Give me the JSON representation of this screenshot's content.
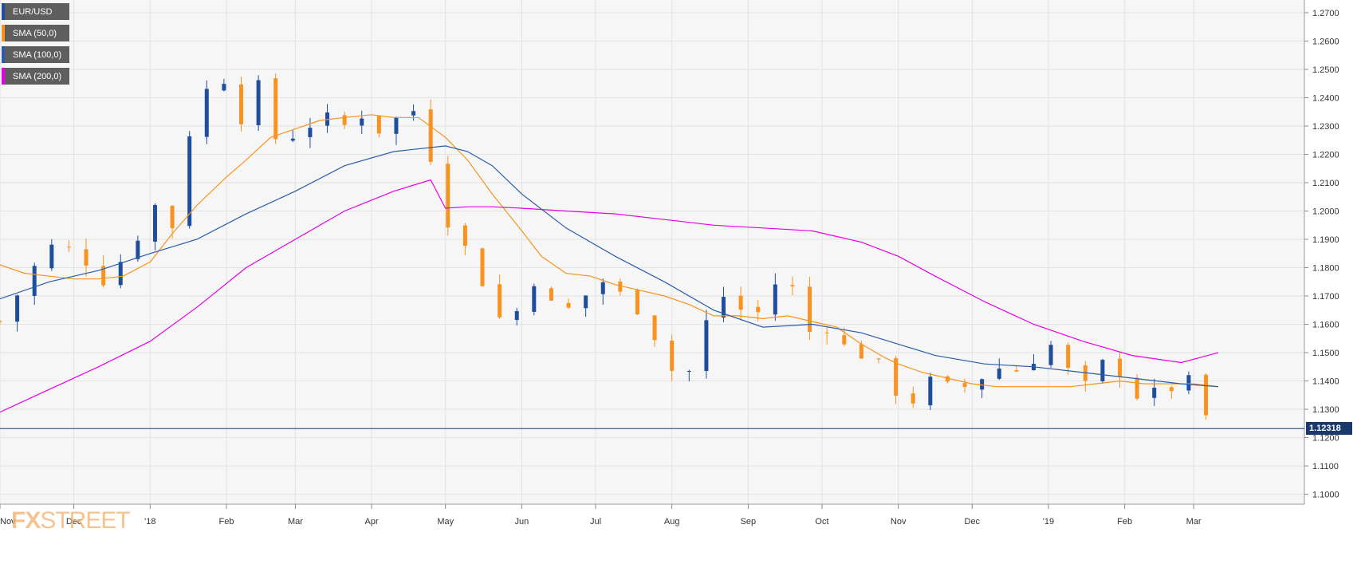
{
  "legend": [
    {
      "label": "EUR/USD",
      "color": "#1f4e9c"
    },
    {
      "label": "SMA (50,0)",
      "color": "#f7931e"
    },
    {
      "label": "SMA (100,0)",
      "color": "#2a5caa"
    },
    {
      "label": "SMA (200,0)",
      "color": "#e600e6"
    }
  ],
  "watermark": {
    "prefix": "FX",
    "suffix": "STREET"
  },
  "price_tag": "1.12318",
  "chart_data": {
    "type": "line",
    "ylim": [
      1.0965,
      1.2745
    ],
    "y_ticks": [
      "1.1000",
      "1.1100",
      "1.1200",
      "1.1300",
      "1.1400",
      "1.1500",
      "1.1600",
      "1.1700",
      "1.1800",
      "1.1900",
      "1.2000",
      "1.2100",
      "1.2200",
      "1.2300",
      "1.2400",
      "1.2500",
      "1.2600",
      "1.2700"
    ],
    "x_tick_labels": [
      "Nov",
      "Dec",
      "'18",
      "Feb",
      "Mar",
      "Apr",
      "May",
      "Jun",
      "Jul",
      "Aug",
      "Sep",
      "Oct",
      "Nov",
      "Dec",
      "'19",
      "Feb",
      "Mar"
    ],
    "x_tick_days": [
      0,
      30,
      61,
      92,
      120,
      151,
      181,
      212,
      242,
      273,
      304,
      334,
      365,
      395,
      426,
      457,
      485
    ],
    "x_range_days": [
      0,
      530
    ],
    "current_price": 1.12318,
    "colors": {
      "up": "#1f4e9c",
      "down": "#f7931e",
      "sma50": "#f7931e",
      "sma100": "#2a5caa",
      "sma200": "#e600e6",
      "price_line": "#1b3a6b"
    },
    "series": [
      {
        "name": "EUR/USD",
        "kind": "candles_close_path",
        "x": [
          0,
          5,
          10,
          15,
          20,
          25,
          30,
          35,
          40,
          45,
          50,
          55,
          61,
          66,
          70,
          75,
          80,
          85,
          92,
          95,
          100,
          105,
          110,
          115,
          120,
          125,
          130,
          135,
          140,
          145,
          151,
          155,
          160,
          165,
          170,
          175,
          181,
          185,
          190,
          195,
          200,
          205,
          212,
          216,
          222,
          228,
          234,
          240,
          246,
          252,
          258,
          264,
          270,
          276,
          282,
          288,
          294,
          300,
          306,
          312,
          318,
          324,
          330,
          336,
          342,
          348,
          354,
          360,
          365,
          370,
          375,
          380,
          386,
          392,
          398,
          404,
          410,
          416,
          422,
          428,
          434,
          440,
          446,
          452,
          458,
          464,
          470,
          476,
          482,
          488,
          492,
          495
        ],
        "y": [
          1.161,
          1.167,
          1.176,
          1.181,
          1.186,
          1.191,
          1.183,
          1.183,
          1.176,
          1.177,
          1.184,
          1.19,
          1.201,
          1.203,
          1.195,
          1.223,
          1.236,
          1.244,
          1.248,
          1.238,
          1.231,
          1.243,
          1.227,
          1.224,
          1.228,
          1.232,
          1.227,
          1.235,
          1.23,
          1.236,
          1.232,
          1.228,
          1.231,
          1.238,
          1.234,
          1.22,
          1.199,
          1.193,
          1.185,
          1.178,
          1.167,
          1.159,
          1.167,
          1.178,
          1.169,
          1.161,
          1.169,
          1.171,
          1.176,
          1.17,
          1.168,
          1.159,
          1.152,
          1.136,
          1.147,
          1.163,
          1.17,
          1.166,
          1.161,
          1.17,
          1.179,
          1.169,
          1.155,
          1.16,
          1.152,
          1.151,
          1.148,
          1.141,
          1.136,
          1.133,
          1.135,
          1.142,
          1.136,
          1.138,
          1.141,
          1.146,
          1.142,
          1.146,
          1.15,
          1.153,
          1.143,
          1.136,
          1.144,
          1.148,
          1.14,
          1.133,
          1.135,
          1.138,
          1.14,
          1.133,
          1.122,
          1.123
        ]
      },
      {
        "name": "SMA (50,0)",
        "x": [
          0,
          10,
          20,
          30,
          40,
          50,
          61,
          70,
          80,
          92,
          100,
          110,
          120,
          130,
          140,
          151,
          160,
          170,
          181,
          190,
          200,
          212,
          220,
          230,
          240,
          250,
          260,
          270,
          280,
          290,
          300,
          310,
          320,
          330,
          340,
          350,
          360,
          365,
          375,
          385,
          395,
          405,
          415,
          425,
          435,
          445,
          455,
          465,
          475,
          485,
          495
        ],
        "y": [
          1.181,
          1.178,
          1.177,
          1.176,
          1.176,
          1.177,
          1.182,
          1.192,
          1.202,
          1.212,
          1.218,
          1.226,
          1.229,
          1.232,
          1.233,
          1.234,
          1.233,
          1.233,
          1.226,
          1.218,
          1.206,
          1.193,
          1.184,
          1.178,
          1.177,
          1.174,
          1.172,
          1.17,
          1.167,
          1.163,
          1.163,
          1.162,
          1.163,
          1.161,
          1.159,
          1.153,
          1.148,
          1.146,
          1.143,
          1.141,
          1.139,
          1.138,
          1.138,
          1.138,
          1.138,
          1.139,
          1.14,
          1.139,
          1.139,
          1.139,
          1.138
        ]
      },
      {
        "name": "SMA (100,0)",
        "x": [
          0,
          20,
          40,
          61,
          80,
          100,
          120,
          140,
          160,
          181,
          190,
          200,
          212,
          230,
          250,
          270,
          290,
          310,
          330,
          350,
          365,
          380,
          400,
          420,
          440,
          460,
          480,
          495
        ],
        "y": [
          1.169,
          1.175,
          1.179,
          1.185,
          1.19,
          1.199,
          1.207,
          1.216,
          1.221,
          1.223,
          1.221,
          1.216,
          1.206,
          1.194,
          1.184,
          1.175,
          1.165,
          1.159,
          1.16,
          1.157,
          1.153,
          1.149,
          1.146,
          1.145,
          1.143,
          1.141,
          1.139,
          1.138
        ]
      },
      {
        "name": "SMA (200,0)",
        "x": [
          0,
          20,
          40,
          61,
          80,
          100,
          120,
          140,
          160,
          175,
          181,
          190,
          200,
          212,
          230,
          250,
          270,
          290,
          310,
          330,
          350,
          365,
          380,
          400,
          420,
          440,
          460,
          480,
          495
        ],
        "y": [
          1.129,
          1.137,
          1.145,
          1.154,
          1.166,
          1.18,
          1.19,
          1.2,
          1.207,
          1.211,
          1.201,
          1.2015,
          1.2015,
          1.201,
          1.2,
          1.199,
          1.197,
          1.195,
          1.194,
          1.193,
          1.189,
          1.184,
          1.177,
          1.168,
          1.16,
          1.154,
          1.149,
          1.1465,
          1.15
        ]
      }
    ]
  }
}
